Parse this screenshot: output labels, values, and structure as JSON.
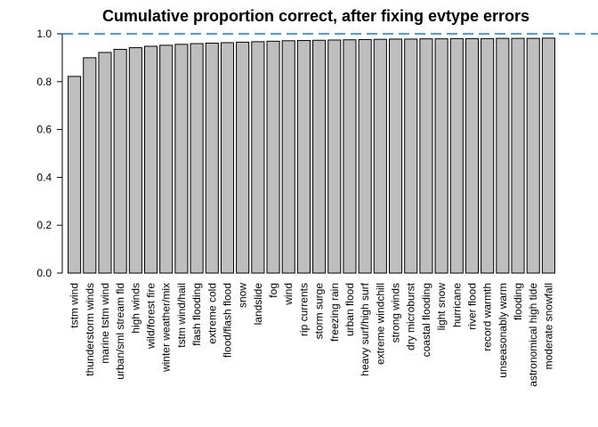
{
  "chart_data": {
    "type": "bar",
    "title": "Cumulative proportion correct, after fixing evtype errors",
    "xlabel": "",
    "ylabel": "",
    "ylim": [
      0,
      1
    ],
    "yticks": [
      "0.0",
      "0.2",
      "0.4",
      "0.6",
      "0.8",
      "1.0"
    ],
    "reference_line": {
      "y": 1.0,
      "style": "dashed",
      "color": "#4a9be8"
    },
    "bar_color": "#bebebe",
    "categories": [
      "tstm wind",
      "thunderstorm winds",
      "marine tstm wind",
      "urban/sml stream fld",
      "high winds",
      "wild/forest fire",
      "winter weather/mix",
      "tstm wind/hail",
      "flash flooding",
      "extreme cold",
      "flood/flash flood",
      "snow",
      "landslide",
      "fog",
      "wind",
      "rip currents",
      "storm surge",
      "freezing rain",
      "urban flood",
      "heavy surf/high surf",
      "extreme windchill",
      "strong winds",
      "dry microburst",
      "coastal flooding",
      "light snow",
      "hurricane",
      "river flood",
      "record warmth",
      "unseasonably warm",
      "flooding",
      "astronomical high tide",
      "moderate snowfall"
    ],
    "values": [
      0.822,
      0.9,
      0.922,
      0.935,
      0.942,
      0.948,
      0.952,
      0.956,
      0.959,
      0.961,
      0.963,
      0.965,
      0.967,
      0.969,
      0.971,
      0.972,
      0.973,
      0.974,
      0.975,
      0.976,
      0.977,
      0.978,
      0.978,
      0.979,
      0.979,
      0.98,
      0.98,
      0.98,
      0.981,
      0.981,
      0.981,
      0.982
    ]
  }
}
